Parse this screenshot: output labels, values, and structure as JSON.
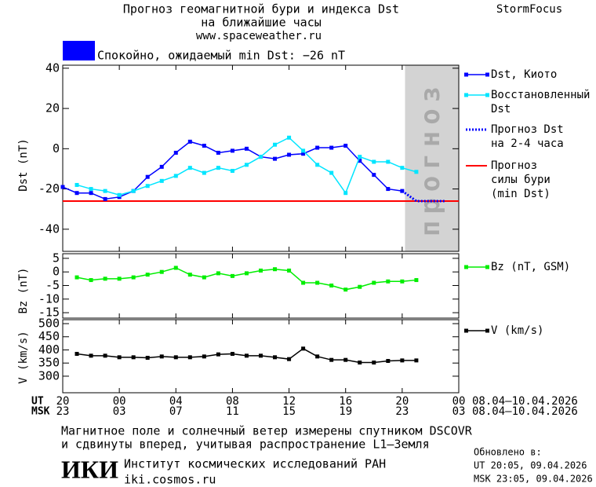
{
  "header": {
    "title": [
      "Прогноз геомагнитной бури и индекса Dst",
      "на ближайшие часы"
    ],
    "url": "www.spaceweather.ru",
    "brand": "StormFocus",
    "status": "Спокойно, ожидаемый min Dst: −26 nT"
  },
  "chart_data": [
    {
      "type": "line",
      "ylabel": "Dst (nT)",
      "xlim": [
        0,
        28
      ],
      "ylim": [
        -51,
        41.5
      ],
      "yticks": [
        -40,
        -20,
        0,
        20,
        40
      ],
      "x": [
        0,
        1,
        2,
        3,
        4,
        5,
        6,
        7,
        8,
        9,
        10,
        11,
        12,
        13,
        14,
        15,
        16,
        17,
        18,
        19,
        20,
        21,
        22,
        23,
        24,
        25,
        26,
        27
      ],
      "series": [
        {
          "name": [
            "Dst, Киото"
          ],
          "color": "#0000ff",
          "marker": true,
          "dashed": false,
          "values": [
            -19,
            -22,
            -22,
            -25,
            -24,
            -21,
            -14,
            -9,
            -2,
            3.5,
            1.5,
            -2,
            -1,
            0,
            -4,
            -5,
            -3,
            -2.5,
            0.5,
            0.5,
            1.5,
            -6,
            -13,
            -20,
            -21,
            null,
            null,
            null
          ]
        },
        {
          "name": [
            "Восстановленный",
            "Dst"
          ],
          "color": "#00e5ff",
          "marker": true,
          "dashed": false,
          "values": [
            null,
            -18,
            -20,
            -21,
            -23,
            -21,
            -18.5,
            -16,
            -13.5,
            -9.5,
            -12,
            -9.5,
            -11,
            -8,
            -4,
            2,
            5.5,
            -1,
            -8,
            -12,
            -22,
            -4,
            -6.5,
            -6.5,
            -9.5,
            -11.5,
            null,
            null
          ]
        },
        {
          "name": [
            "Прогноз Dst",
            "на 2-4 часа"
          ],
          "color": "#0000ff",
          "marker": false,
          "dashed": true,
          "values": [
            null,
            null,
            null,
            null,
            null,
            null,
            null,
            null,
            null,
            null,
            null,
            null,
            null,
            null,
            null,
            null,
            null,
            null,
            null,
            null,
            null,
            null,
            null,
            null,
            -21,
            -26,
            -26,
            -26
          ]
        }
      ],
      "threshold": {
        "name": [
          "Прогноз",
          "силы бури",
          "(min Dst)"
        ],
        "color": "#ff0000",
        "value": -26
      },
      "forecast_band": {
        "xlim": [
          24.2,
          28
        ],
        "label": "прогноз"
      }
    },
    {
      "type": "line",
      "ylabel": "Bz (nT)",
      "xlim": [
        0,
        28
      ],
      "ylim": [
        -17,
        6.7
      ],
      "yticks": [
        -15,
        -10,
        -5,
        0,
        5
      ],
      "x": [
        0,
        1,
        2,
        3,
        4,
        5,
        6,
        7,
        8,
        9,
        10,
        11,
        12,
        13,
        14,
        15,
        16,
        17,
        18,
        19,
        20,
        21,
        22,
        23,
        24,
        25,
        26,
        27
      ],
      "series": [
        {
          "name": [
            "Bz (nT, GSM)"
          ],
          "color": "#00ee00",
          "marker": true,
          "dashed": false,
          "values": [
            null,
            -2,
            -3,
            -2.5,
            -2.5,
            -2,
            -1,
            0,
            1.5,
            -1,
            -2,
            -0.5,
            -1.5,
            -0.5,
            0.5,
            1,
            0.5,
            -4,
            -4,
            -5,
            -6.5,
            -5.5,
            -4,
            -3.5,
            -3.5,
            -3,
            null,
            null
          ]
        }
      ]
    },
    {
      "type": "line",
      "ylabel": "V (km/s)",
      "xlim": [
        0,
        28
      ],
      "ylim": [
        237,
        515
      ],
      "yticks": [
        300,
        350,
        400,
        450,
        500
      ],
      "x": [
        0,
        1,
        2,
        3,
        4,
        5,
        6,
        7,
        8,
        9,
        10,
        11,
        12,
        13,
        14,
        15,
        16,
        17,
        18,
        19,
        20,
        21,
        22,
        23,
        24,
        25,
        26,
        27
      ],
      "series": [
        {
          "name": [
            "V (km/s)"
          ],
          "color": "#000000",
          "marker": true,
          "dashed": false,
          "values": [
            null,
            385,
            378,
            378,
            372,
            372,
            370,
            375,
            372,
            372,
            375,
            383,
            385,
            378,
            378,
            372,
            365,
            405,
            375,
            362,
            362,
            352,
            352,
            358,
            360,
            360,
            null,
            null
          ]
        }
      ],
      "xticks": [
        {
          "value": 0,
          "label": "20"
        },
        {
          "value": 4,
          "label": "00"
        },
        {
          "value": 8,
          "label": "04"
        },
        {
          "value": 12,
          "label": "08"
        },
        {
          "value": 16,
          "label": "12"
        },
        {
          "value": 20,
          "label": "16"
        },
        {
          "value": 24,
          "label": "20"
        },
        {
          "value": 28,
          "label": "00"
        }
      ],
      "msk_ticks": [
        {
          "value": 0,
          "label": "23"
        },
        {
          "value": 4,
          "label": "03"
        },
        {
          "value": 8,
          "label": "07"
        },
        {
          "value": 12,
          "label": "11"
        },
        {
          "value": 16,
          "label": "15"
        },
        {
          "value": 20,
          "label": "19"
        },
        {
          "value": 24,
          "label": "23"
        },
        {
          "value": 28,
          "label": "03"
        }
      ],
      "ut_label": "UT",
      "msk_label": "MSK",
      "date_range_ut": "08.04–10.04.2026",
      "date_range_msk": "08.04–10.04.2026"
    }
  ],
  "footer": {
    "note": [
      "Магнитное поле и солнечный ветер измерены спутником DSCOVR",
      "и сдвинуты вперед, учитывая распространение L1–Земля"
    ],
    "logo": "ИКИ",
    "institute": "Институт космических исследований РАН",
    "site": "iki.cosmos.ru",
    "updated": [
      "Обновлено в:",
      "UT  20:05, 09.04.2026",
      "MSK 23:05, 09.04.2026"
    ]
  }
}
